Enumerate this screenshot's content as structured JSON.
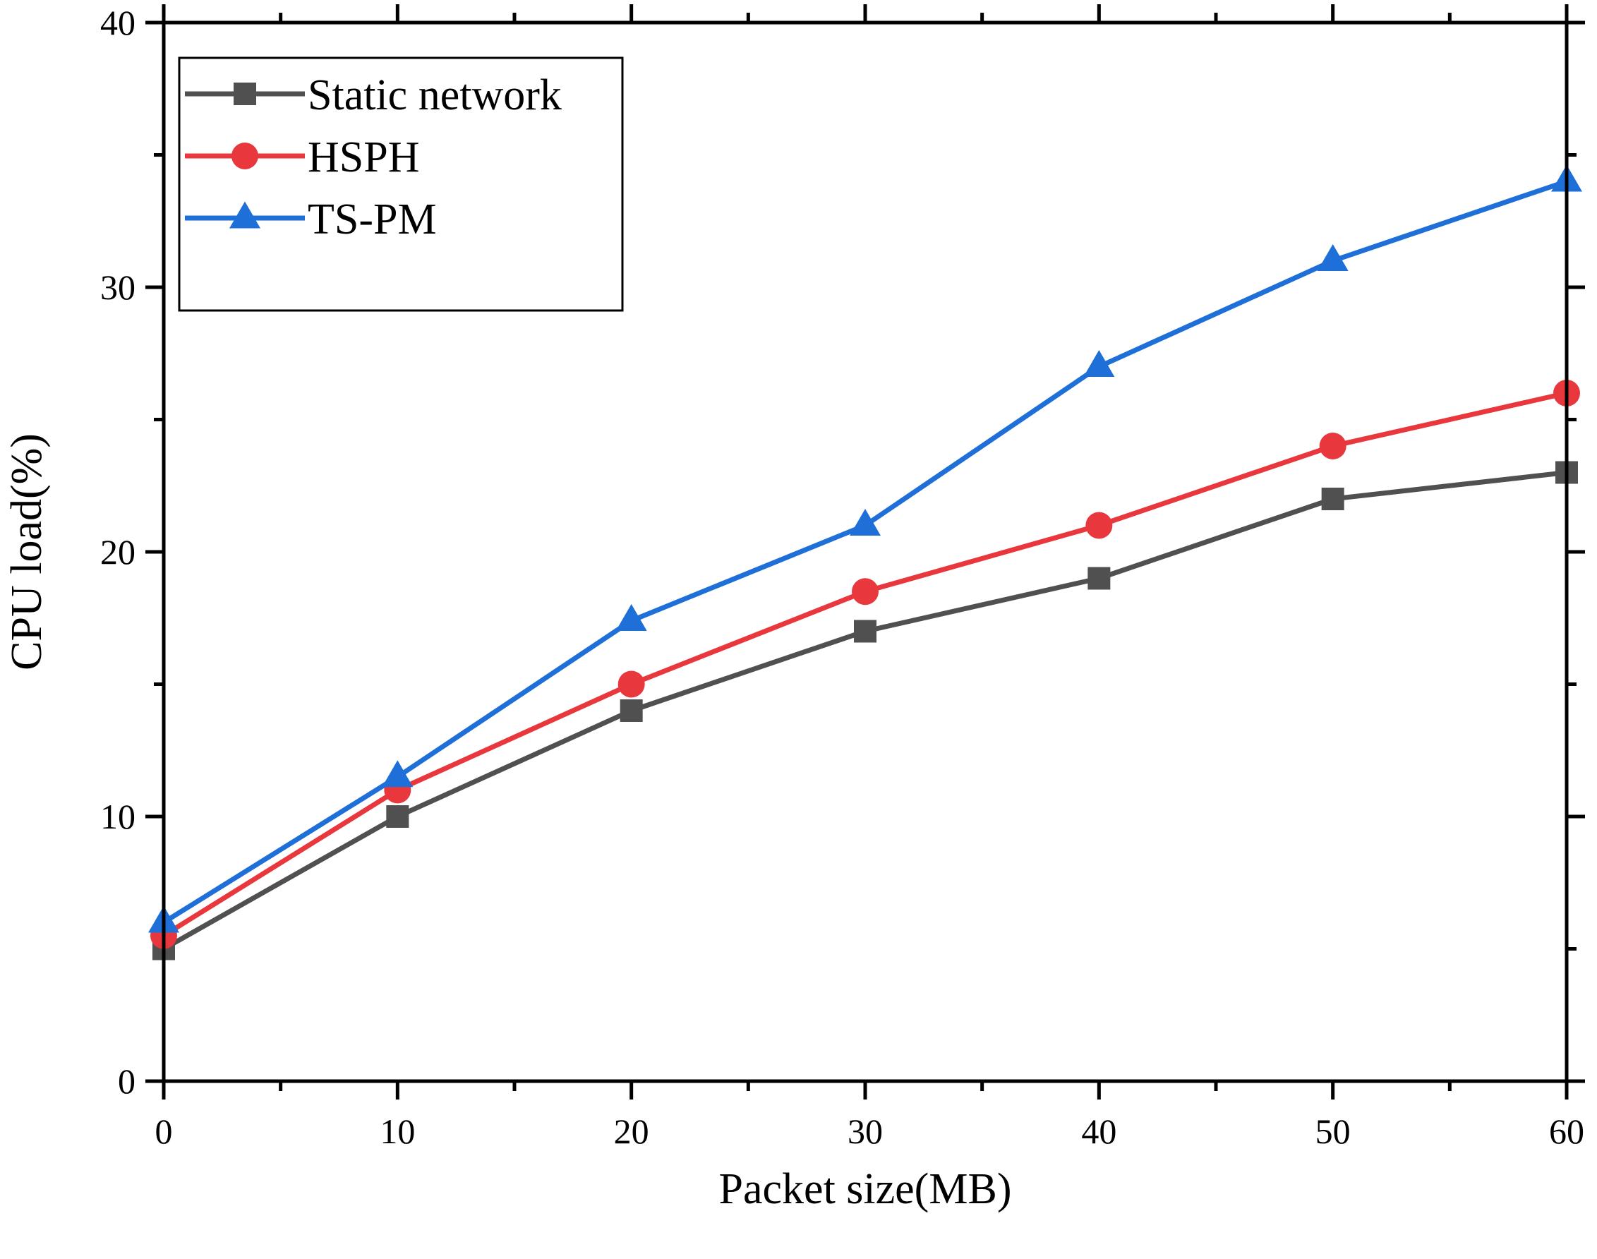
{
  "chart_data": {
    "type": "line",
    "title": "",
    "xlabel": "Packet size(MB)",
    "ylabel": "CPU load(%)",
    "xlim": [
      0,
      60
    ],
    "ylim": [
      0,
      40
    ],
    "x_ticks": [
      0,
      10,
      20,
      30,
      40,
      50,
      60
    ],
    "x_tick_labels": [
      "0",
      "10",
      "20",
      "30",
      "40",
      "50",
      "60"
    ],
    "y_ticks": [
      0,
      10,
      20,
      30,
      40
    ],
    "y_tick_labels": [
      "0",
      "10",
      "20",
      "30",
      "40"
    ],
    "grid": false,
    "legend_position": "top-left",
    "x": [
      0,
      10,
      20,
      30,
      40,
      50,
      60
    ],
    "series": [
      {
        "name": "Static network",
        "color": "#505050",
        "marker": "square",
        "values": [
          5,
          10,
          14,
          17,
          19,
          22,
          23
        ]
      },
      {
        "name": "HSPH",
        "color": "#e8383d",
        "marker": "circle",
        "values": [
          5.5,
          11,
          15,
          18.5,
          21,
          24,
          26
        ]
      },
      {
        "name": "TS-PM",
        "color": "#1f6fd8",
        "marker": "triangle",
        "values": [
          6,
          11.5,
          17.4,
          21,
          27,
          31,
          34
        ]
      }
    ]
  }
}
